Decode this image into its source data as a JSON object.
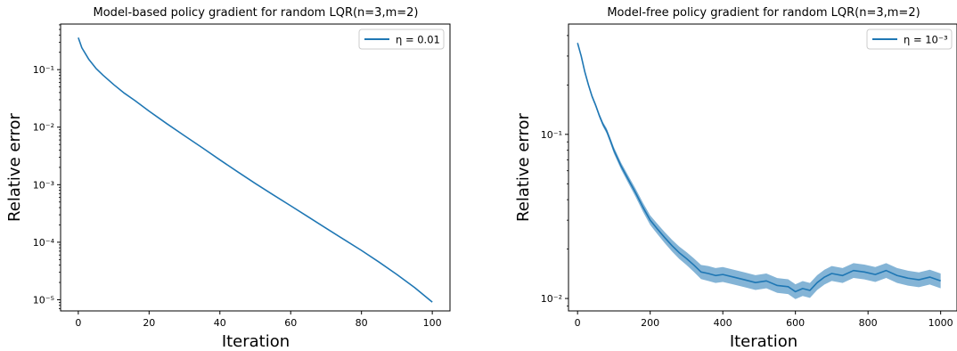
{
  "chart_data": [
    {
      "type": "line",
      "title": "Model-based policy gradient for random LQR(n=3,m=2)",
      "xlabel": "Iteration",
      "ylabel": "Relative error",
      "yscale": "log",
      "xlim": [
        -5,
        105
      ],
      "ylim": [
        6.4e-06,
        0.62
      ],
      "xticks": [
        0,
        20,
        40,
        60,
        80,
        100
      ],
      "xtick_labels": [
        "0",
        "20",
        "40",
        "60",
        "80",
        "100"
      ],
      "yticks": [
        1e-05,
        0.0001,
        0.001,
        0.01,
        0.1
      ],
      "ytick_labels": [
        "10⁻⁵",
        "10⁻⁴",
        "10⁻³",
        "10⁻²",
        "10⁻¹"
      ],
      "legend_position": "top-right",
      "grid": false,
      "series": [
        {
          "name": "η = 0.01",
          "color": "#1f77b4",
          "x": [
            0,
            1,
            2,
            3,
            5,
            7,
            10,
            13,
            16,
            20,
            25,
            30,
            35,
            40,
            45,
            50,
            55,
            60,
            65,
            70,
            75,
            80,
            85,
            90,
            95,
            100
          ],
          "values": [
            0.36,
            0.24,
            0.19,
            0.15,
            0.105,
            0.08,
            0.055,
            0.039,
            0.029,
            0.019,
            0.0115,
            0.0071,
            0.0044,
            0.0027,
            0.00168,
            0.00105,
            0.00067,
            0.00043,
            0.000275,
            0.000175,
            0.000112,
            7.2e-05,
            4.5e-05,
            2.75e-05,
            1.63e-05,
            9.1e-06
          ]
        }
      ]
    },
    {
      "type": "line",
      "title": "Model-free policy gradient for random LQR(n=3,m=2)",
      "xlabel": "Iteration",
      "ylabel": "Relative error",
      "yscale": "log",
      "xlim": [
        -25,
        1045
      ],
      "ylim": [
        0.0084,
        0.47
      ],
      "xticks": [
        0,
        200,
        400,
        600,
        800,
        1000
      ],
      "xtick_labels": [
        "0",
        "200",
        "400",
        "600",
        "800",
        "1000"
      ],
      "yticks": [
        0.01,
        0.1
      ],
      "ytick_labels": [
        "10⁻²",
        "10⁻¹"
      ],
      "legend_position": "top-right",
      "grid": false,
      "series": [
        {
          "name": "η = 10⁻³",
          "color": "#1f77b4",
          "shaded_band": "uncertainty band around the mean curve",
          "band_color": "#1f77b4",
          "band_opacity": 0.55,
          "x": [
            0,
            10,
            20,
            30,
            40,
            50,
            60,
            70,
            80,
            90,
            100,
            120,
            140,
            160,
            180,
            200,
            220,
            240,
            260,
            280,
            300,
            320,
            340,
            360,
            380,
            400,
            430,
            460,
            490,
            520,
            550,
            580,
            600,
            620,
            640,
            660,
            680,
            700,
            730,
            760,
            790,
            820,
            850,
            880,
            910,
            940,
            970,
            1000
          ],
          "values": [
            0.36,
            0.3,
            0.24,
            0.2,
            0.17,
            0.15,
            0.13,
            0.115,
            0.105,
            0.092,
            0.08,
            0.064,
            0.053,
            0.044,
            0.036,
            0.03,
            0.0265,
            0.0235,
            0.021,
            0.019,
            0.0175,
            0.016,
            0.0145,
            0.0142,
            0.0138,
            0.014,
            0.0135,
            0.013,
            0.0125,
            0.0128,
            0.012,
            0.0118,
            0.011,
            0.0115,
            0.0112,
            0.0125,
            0.0135,
            0.0142,
            0.0138,
            0.0148,
            0.0145,
            0.014,
            0.0148,
            0.0138,
            0.0133,
            0.013,
            0.0135,
            0.0128
          ],
          "band_half_width": [
            0.02,
            0.02,
            0.022,
            0.024,
            0.026,
            0.028,
            0.03,
            0.034,
            0.038,
            0.042,
            0.045,
            0.05,
            0.055,
            0.06,
            0.065,
            0.07,
            0.075,
            0.08,
            0.085,
            0.09,
            0.095,
            0.1,
            0.105,
            0.11,
            0.11,
            0.11,
            0.11,
            0.11,
            0.11,
            0.11,
            0.11,
            0.11,
            0.11,
            0.11,
            0.11,
            0.11,
            0.11,
            0.11,
            0.11,
            0.11,
            0.11,
            0.11,
            0.11,
            0.11,
            0.11,
            0.11,
            0.11,
            0.11
          ]
        }
      ]
    }
  ]
}
